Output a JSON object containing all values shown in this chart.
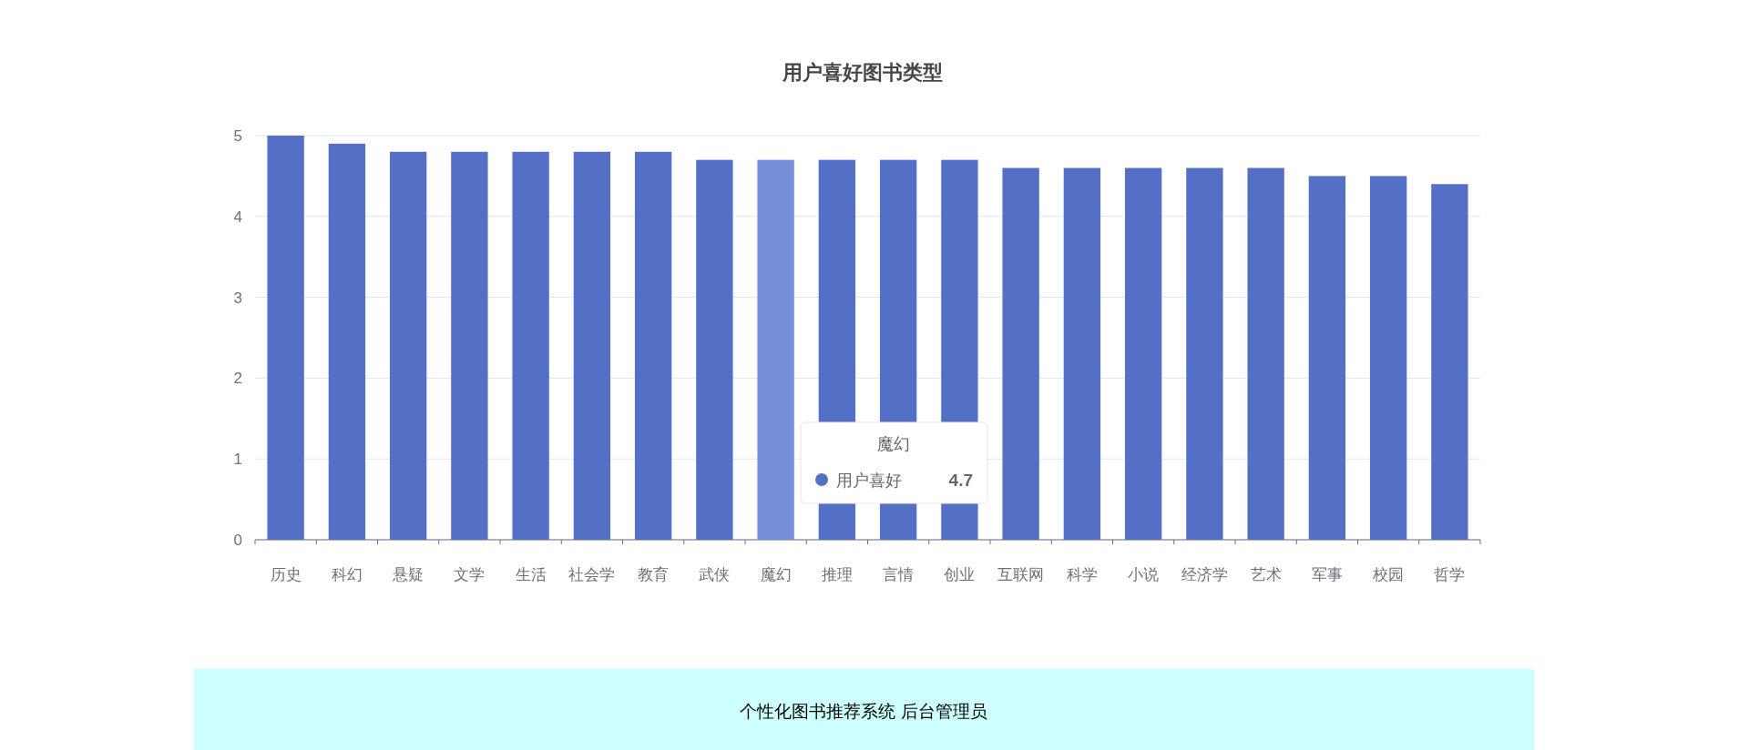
{
  "chart_data": {
    "type": "bar",
    "title": "用户喜好图书类型",
    "categories": [
      "历史",
      "科幻",
      "悬疑",
      "文学",
      "生活",
      "社会学",
      "教育",
      "武侠",
      "魔幻",
      "推理",
      "言情",
      "创业",
      "互联网",
      "科学",
      "小说",
      "经济学",
      "艺术",
      "军事",
      "校园",
      "哲学"
    ],
    "series": [
      {
        "name": "用户喜好",
        "color": "#5470c6",
        "colors": [
          "#5470c6",
          "#5470c6",
          "#5470c6",
          "#5470c6",
          "#5470c6",
          "#5470c6",
          "#5470c6",
          "#5470c6",
          "#748ed8",
          "#5470c6",
          "#5470c6",
          "#5470c6",
          "#5470c6",
          "#5470c6",
          "#5470c6",
          "#5470c6",
          "#5470c6",
          "#5470c6",
          "#5470c6",
          "#5470c6"
        ],
        "values": [
          5.0,
          4.9,
          4.8,
          4.8,
          4.8,
          4.8,
          4.8,
          4.7,
          4.7,
          4.7,
          4.7,
          4.7,
          4.6,
          4.6,
          4.6,
          4.6,
          4.6,
          4.5,
          4.5,
          4.4
        ]
      }
    ],
    "ylim": [
      0,
      5
    ],
    "yticks": [
      0,
      1,
      2,
      3,
      4,
      5
    ],
    "grid": "y",
    "legend": "bottom",
    "annotations": [
      "个性化图书推荐系统 后台管理员",
      "魔幻",
      "4.7"
    ]
  }
}
